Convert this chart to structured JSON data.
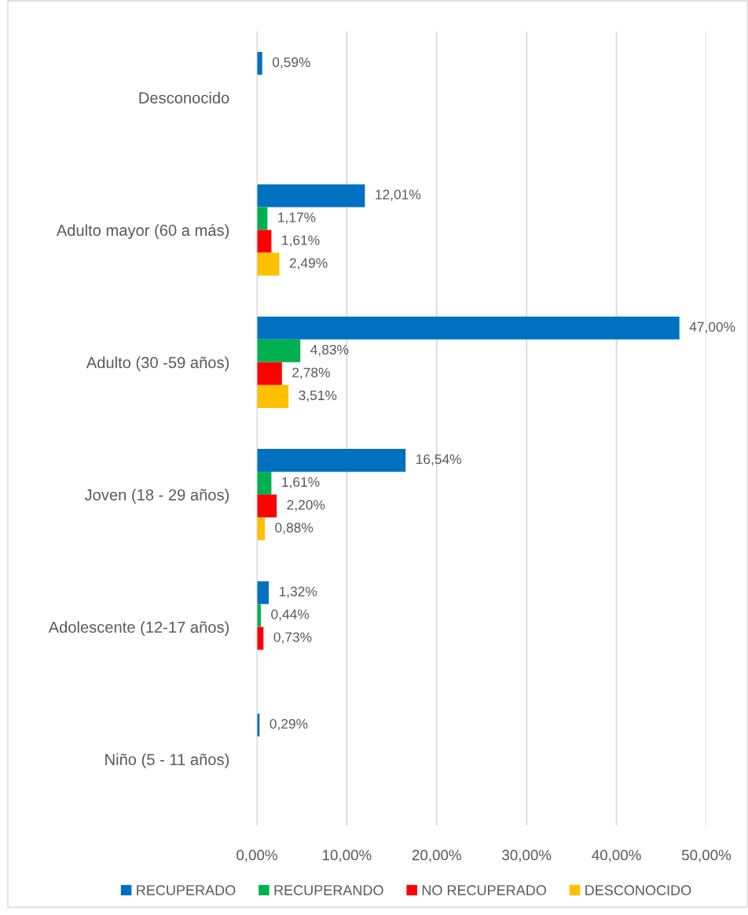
{
  "chart_data": {
    "type": "bar",
    "orientation": "horizontal",
    "categories": [
      "Desconocido",
      "Adulto mayor (60 a más)",
      "Adulto (30 -59 años)",
      "Joven (18 - 29 años)",
      "Adolescente (12-17 años)",
      "Niño (5 - 11 años)"
    ],
    "series": [
      {
        "name": "RECUPERADO",
        "color": "#0070c0",
        "values": [
          0.59,
          12.01,
          47.0,
          16.54,
          1.32,
          0.29
        ],
        "value_labels": [
          "0,59%",
          "12,01%",
          "47,00%",
          "16,54%",
          "1,32%",
          "0,29%"
        ]
      },
      {
        "name": "RECUPERANDO",
        "color": "#00b050",
        "values": [
          null,
          1.17,
          4.83,
          1.61,
          0.44,
          null
        ],
        "value_labels": [
          null,
          "1,17%",
          "4,83%",
          "1,61%",
          "0,44%",
          null
        ]
      },
      {
        "name": "NO RECUPERADO",
        "color": "#ff0000",
        "values": [
          null,
          1.61,
          2.78,
          2.2,
          0.73,
          null
        ],
        "value_labels": [
          null,
          "1,61%",
          "2,78%",
          "2,20%",
          "0,73%",
          null
        ]
      },
      {
        "name": "DESCONOCIDO",
        "color": "#ffc000",
        "values": [
          null,
          2.49,
          3.51,
          0.88,
          null,
          null
        ],
        "value_labels": [
          null,
          "2,49%",
          "3,51%",
          "0,88%",
          null,
          null
        ]
      }
    ],
    "xlim": [
      0,
      50
    ],
    "xticks": [
      {
        "value": 0,
        "label": "0,00%"
      },
      {
        "value": 10,
        "label": "10,00%"
      },
      {
        "value": 20,
        "label": "20,00%"
      },
      {
        "value": 30,
        "label": "30,00%"
      },
      {
        "value": 40,
        "label": "40,00%"
      },
      {
        "value": 50,
        "label": "50,00%"
      }
    ],
    "grid": "x",
    "legend": "bottom"
  }
}
